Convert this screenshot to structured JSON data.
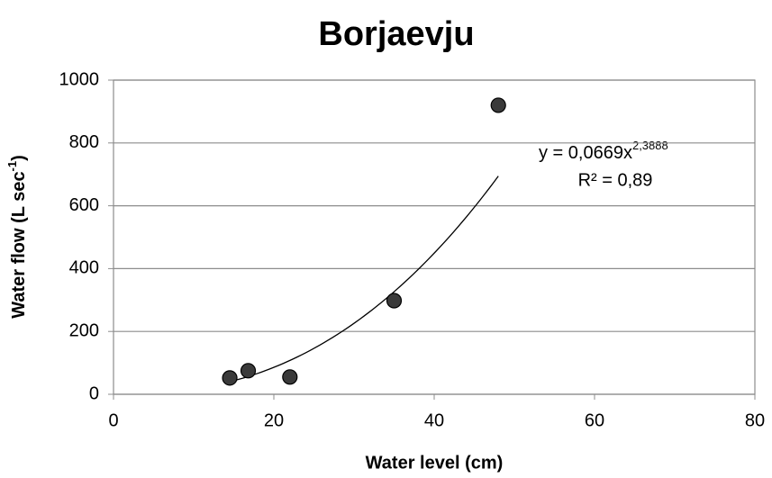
{
  "chart_data": {
    "type": "scatter",
    "title": "Borjaevju",
    "x_label": "Water level (cm)",
    "y_label": {
      "main": "Water flow (L sec",
      "superscript": "-1",
      "end": ")"
    },
    "x": [
      14.5,
      16.8,
      22,
      35,
      48
    ],
    "values": [
      52,
      75,
      55,
      298,
      920
    ],
    "color": "#3a3a3a",
    "xlim": [
      0,
      80
    ],
    "xticks": [
      0,
      20,
      40,
      60,
      80
    ],
    "ylim": [
      0,
      1000
    ],
    "yticks": [
      0,
      200,
      400,
      600,
      800,
      1000
    ],
    "grid": true,
    "trendline": {
      "type": "power",
      "coefficient": 0.0669,
      "exponent": 2.3888,
      "equation": {
        "main": "y = 0,0669x",
        "superscript": "2,3888"
      },
      "r_squared": "R² = 0,89"
    }
  }
}
